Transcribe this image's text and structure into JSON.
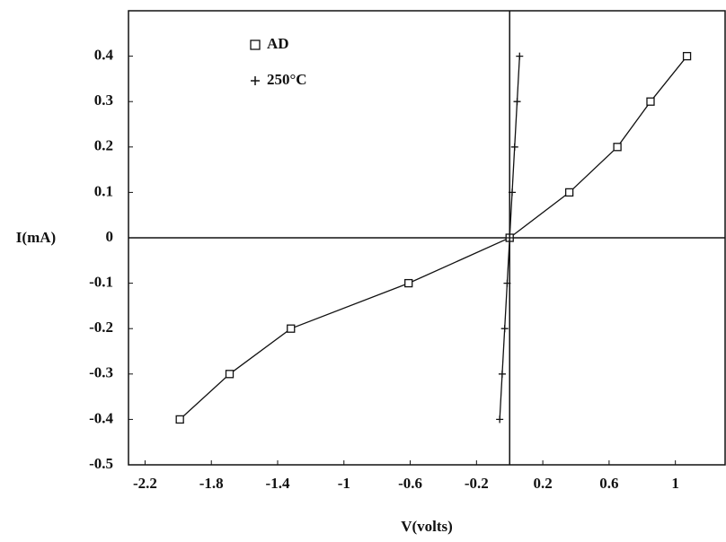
{
  "chart_data": {
    "type": "line",
    "xlabel": "V(volts)",
    "ylabel": "I(mA)",
    "xlim": [
      -2.3,
      1.3
    ],
    "ylim": [
      -0.5,
      0.5
    ],
    "xticks": [
      -2.2,
      -1.8,
      -1.4,
      -1,
      -0.6,
      -0.2,
      0.2,
      0.6,
      1
    ],
    "yticks": [
      -0.5,
      -0.4,
      -0.3,
      -0.2,
      -0.1,
      0,
      0.1,
      0.2,
      0.3,
      0.4
    ],
    "grid": false,
    "legend": "upper left",
    "series": [
      {
        "name": "AD",
        "marker": "square",
        "color": "#111111",
        "x": [
          -1.99,
          -1.69,
          -1.32,
          -0.61,
          0,
          0.36,
          0.65,
          0.85,
          1.07
        ],
        "values": [
          -0.4,
          -0.3,
          -0.2,
          -0.1,
          0,
          0.1,
          0.2,
          0.3,
          0.4
        ]
      },
      {
        "name": "250°C",
        "marker": "plus",
        "color": "#111111",
        "x": [
          -0.06,
          -0.045,
          -0.03,
          -0.015,
          0,
          0.015,
          0.03,
          0.045,
          0.06
        ],
        "values": [
          -0.4,
          -0.3,
          -0.2,
          -0.1,
          0,
          0.1,
          0.2,
          0.3,
          0.4
        ]
      }
    ]
  }
}
